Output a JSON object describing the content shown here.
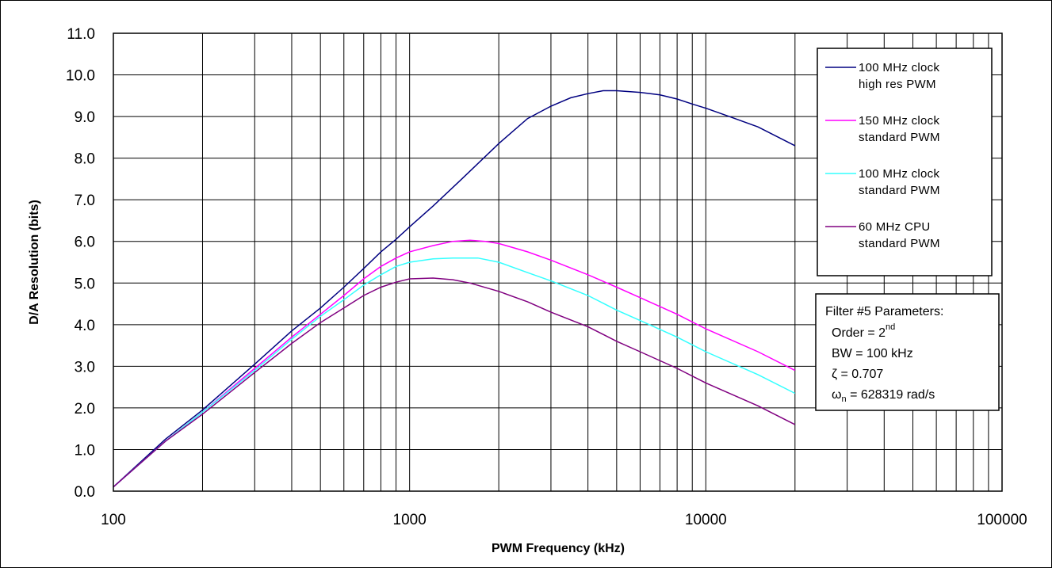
{
  "chart_data": {
    "type": "line",
    "xlabel": "PWM Frequency (kHz)",
    "ylabel": "D/A Resolution (bits)",
    "xscale": "log",
    "xlim": [
      100,
      100000
    ],
    "ylim": [
      0,
      11
    ],
    "grid": true,
    "x_tick_labels": [
      "100",
      "1000",
      "10000",
      "100000"
    ],
    "y_tick_labels": [
      "0.0",
      "1.0",
      "2.0",
      "3.0",
      "4.0",
      "5.0",
      "6.0",
      "7.0",
      "8.0",
      "9.0",
      "10.0",
      "11.0"
    ],
    "legend_position": "right",
    "series": [
      {
        "name": "100 MHz clock high res PWM",
        "color": "#000080",
        "x": [
          100,
          150,
          200,
          300,
          400,
          500,
          600,
          700,
          800,
          900,
          1000,
          1200,
          1500,
          2000,
          2500,
          3000,
          3500,
          4000,
          4500,
          5000,
          6000,
          7000,
          8000,
          9000,
          10000,
          12000,
          15000,
          20000
        ],
        "y": [
          0.1,
          1.25,
          1.95,
          3.05,
          3.85,
          4.4,
          4.9,
          5.35,
          5.75,
          6.05,
          6.35,
          6.85,
          7.5,
          8.35,
          8.95,
          9.25,
          9.45,
          9.55,
          9.62,
          9.62,
          9.58,
          9.52,
          9.42,
          9.3,
          9.2,
          9.0,
          8.75,
          8.3
        ]
      },
      {
        "name": "150 MHz clock standard PWM",
        "color": "#ff00ff",
        "x": [
          100,
          150,
          200,
          300,
          400,
          500,
          600,
          700,
          800,
          900,
          1000,
          1200,
          1400,
          1600,
          1800,
          2000,
          2500,
          3000,
          4000,
          5000,
          6000,
          8000,
          10000,
          15000,
          20000
        ],
        "y": [
          0.1,
          1.2,
          1.9,
          2.95,
          3.7,
          4.25,
          4.7,
          5.1,
          5.4,
          5.6,
          5.75,
          5.9,
          6.0,
          6.03,
          6.0,
          5.95,
          5.75,
          5.55,
          5.2,
          4.9,
          4.65,
          4.25,
          3.9,
          3.35,
          2.9
        ]
      },
      {
        "name": "100 MHz clock standard PWM",
        "color": "#33ffff",
        "x": [
          100,
          150,
          200,
          300,
          400,
          500,
          600,
          700,
          800,
          900,
          1000,
          1200,
          1400,
          1700,
          2000,
          2500,
          3000,
          4000,
          5000,
          6000,
          8000,
          10000,
          15000,
          20000
        ],
        "y": [
          0.1,
          1.2,
          1.9,
          2.9,
          3.65,
          4.2,
          4.6,
          4.95,
          5.2,
          5.4,
          5.5,
          5.58,
          5.6,
          5.6,
          5.5,
          5.25,
          5.05,
          4.7,
          4.35,
          4.1,
          3.7,
          3.35,
          2.8,
          2.35
        ]
      },
      {
        "name": "60 MHz CPU standard PWM",
        "color": "#800080",
        "x": [
          100,
          150,
          200,
          300,
          400,
          500,
          600,
          700,
          800,
          900,
          1000,
          1200,
          1400,
          1600,
          2000,
          2500,
          3000,
          4000,
          5000,
          6000,
          8000,
          10000,
          15000,
          20000
        ],
        "y": [
          0.1,
          1.2,
          1.85,
          2.85,
          3.55,
          4.05,
          4.4,
          4.7,
          4.9,
          5.02,
          5.1,
          5.12,
          5.08,
          5.0,
          4.8,
          4.55,
          4.3,
          3.95,
          3.6,
          3.35,
          2.95,
          2.6,
          2.05,
          1.6
        ]
      }
    ],
    "annotation": {
      "title": "Filter #5 Parameters:",
      "order_prefix": "Order = 2",
      "order_sup": "nd",
      "bw": "BW = 100 kHz",
      "zeta": "ζ = 0.707",
      "omega_symbol": "ω",
      "omega_sub": "n",
      "omega_value": " = 628319 rad/s"
    }
  }
}
